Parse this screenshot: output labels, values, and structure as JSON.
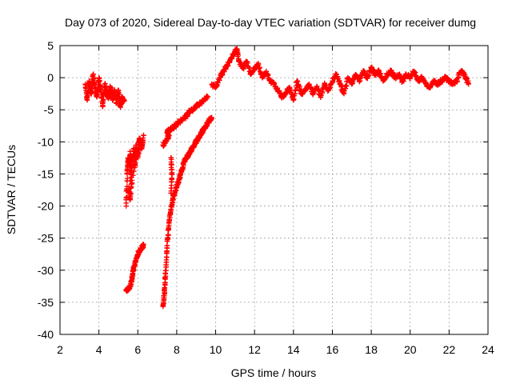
{
  "chart_data": {
    "type": "scatter",
    "title": "Day 073 of 2020, Sidereal Day-to-day VTEC variation (SDTVAR) for receiver dumg",
    "xlabel": "GPS time / hours",
    "ylabel": "SDTVAR / TECUs",
    "xlim": [
      2,
      24
    ],
    "ylim": [
      -40,
      5
    ],
    "xticks": [
      2,
      4,
      6,
      8,
      10,
      12,
      14,
      16,
      18,
      20,
      22,
      24
    ],
    "yticks": [
      5,
      0,
      -5,
      -10,
      -15,
      -20,
      -25,
      -30,
      -35,
      -40
    ],
    "grid": true,
    "marker": "+",
    "color": "#ff0000",
    "series": [
      {
        "name": "SDTVAR",
        "segments": [
          [
            [
              3.3,
              -1.0
            ],
            [
              3.4,
              -3.5
            ],
            [
              3.5,
              -0.5
            ],
            [
              3.6,
              -2.5
            ],
            [
              3.7,
              0.5
            ],
            [
              3.8,
              -1.5
            ],
            [
              3.9,
              -3.0
            ],
            [
              4.0,
              0.0
            ],
            [
              4.1,
              -2.0
            ],
            [
              4.2,
              -4.5
            ],
            [
              4.3,
              -1.0
            ],
            [
              4.4,
              -2.5
            ],
            [
              4.5,
              -3.0
            ],
            [
              4.6,
              -1.5
            ],
            [
              4.7,
              -3.5
            ],
            [
              4.8,
              -2.0
            ],
            [
              4.9,
              -4.0
            ],
            [
              5.0,
              -2.0
            ],
            [
              5.1,
              -4.5
            ],
            [
              5.2,
              -3.0
            ],
            [
              5.3,
              -3.5
            ]
          ],
          [
            [
              5.4,
              -20.0
            ],
            [
              5.45,
              -15.0
            ],
            [
              5.5,
              -12.5
            ],
            [
              5.55,
              -13.5
            ],
            [
              5.6,
              -11.5
            ],
            [
              5.65,
              -15.5
            ],
            [
              5.7,
              -13.0
            ],
            [
              5.8,
              -11.0
            ],
            [
              5.85,
              -14.0
            ],
            [
              5.9,
              -10.5
            ],
            [
              6.0,
              -12.5
            ],
            [
              6.05,
              -10.0
            ],
            [
              6.1,
              -9.5
            ],
            [
              6.2,
              -11.0
            ],
            [
              6.3,
              -9.0
            ],
            [
              5.55,
              -17.0
            ],
            [
              5.6,
              -19.0
            ],
            [
              5.7,
              -16.0
            ]
          ],
          [
            [
              5.4,
              -33.0
            ],
            [
              5.5,
              -33.0
            ],
            [
              5.6,
              -32.5
            ],
            [
              5.7,
              -31.5
            ],
            [
              5.75,
              -30.5
            ],
            [
              5.8,
              -29.5
            ],
            [
              5.9,
              -28.5
            ],
            [
              6.0,
              -27.5
            ],
            [
              6.1,
              -27.0
            ],
            [
              6.2,
              -26.5
            ],
            [
              6.3,
              -26.0
            ]
          ],
          [
            [
              7.3,
              -10.5
            ],
            [
              7.4,
              -10.0
            ],
            [
              7.5,
              -9.5
            ],
            [
              7.6,
              -9.0
            ],
            [
              7.5,
              -8.5
            ],
            [
              7.7,
              -8.0
            ],
            [
              7.9,
              -7.5
            ],
            [
              8.1,
              -7.0
            ],
            [
              8.3,
              -6.5
            ],
            [
              8.5,
              -6.0
            ],
            [
              8.6,
              -5.5
            ],
            [
              8.8,
              -5.0
            ],
            [
              9.0,
              -4.5
            ],
            [
              9.2,
              -4.0
            ],
            [
              9.4,
              -3.5
            ],
            [
              9.6,
              -3.0
            ]
          ],
          [
            [
              7.7,
              -12.5
            ],
            [
              7.75,
              -15.0
            ],
            [
              7.7,
              -18.0
            ]
          ],
          [
            [
              7.3,
              -35.5
            ],
            [
              7.35,
              -34.0
            ],
            [
              7.4,
              -32.0
            ],
            [
              7.45,
              -29.5
            ],
            [
              7.5,
              -27.0
            ],
            [
              7.55,
              -24.5
            ],
            [
              7.6,
              -22.5
            ],
            [
              7.7,
              -20.5
            ],
            [
              7.8,
              -19.0
            ],
            [
              7.9,
              -18.0
            ],
            [
              8.0,
              -17.0
            ],
            [
              8.1,
              -16.0
            ],
            [
              8.2,
              -15.0
            ],
            [
              8.3,
              -14.0
            ],
            [
              8.4,
              -13.0
            ],
            [
              8.5,
              -12.5
            ],
            [
              8.6,
              -12.0
            ],
            [
              8.7,
              -11.5
            ],
            [
              8.8,
              -11.0
            ],
            [
              8.9,
              -10.5
            ],
            [
              9.0,
              -10.0
            ],
            [
              9.1,
              -9.5
            ],
            [
              9.2,
              -9.0
            ],
            [
              9.3,
              -8.5
            ],
            [
              9.4,
              -8.0
            ],
            [
              9.5,
              -7.5
            ],
            [
              9.6,
              -7.0
            ],
            [
              9.7,
              -6.5
            ],
            [
              9.8,
              -6.2
            ]
          ],
          [
            [
              9.8,
              -1.0
            ],
            [
              10.0,
              -1.5
            ],
            [
              10.2,
              0.0
            ],
            [
              10.4,
              1.0
            ],
            [
              10.6,
              2.0
            ],
            [
              10.8,
              3.0
            ],
            [
              11.0,
              4.0
            ],
            [
              11.1,
              4.5
            ],
            [
              11.2,
              2.5
            ],
            [
              11.4,
              1.5
            ],
            [
              11.6,
              2.5
            ],
            [
              11.8,
              0.5
            ],
            [
              12.0,
              1.5
            ],
            [
              12.2,
              2.0
            ],
            [
              12.4,
              0.0
            ],
            [
              12.6,
              1.0
            ],
            [
              12.8,
              -0.5
            ],
            [
              13.0,
              -1.0
            ],
            [
              13.2,
              -2.0
            ],
            [
              13.4,
              -3.0
            ],
            [
              13.6,
              -2.5
            ],
            [
              13.8,
              -1.5
            ],
            [
              14.0,
              -3.5
            ],
            [
              14.2,
              -0.5
            ],
            [
              14.4,
              -2.5
            ],
            [
              14.6,
              -2.0
            ],
            [
              14.8,
              -1.0
            ],
            [
              15.0,
              -2.5
            ],
            [
              15.2,
              -1.5
            ],
            [
              15.4,
              -3.0
            ],
            [
              15.6,
              -1.0
            ],
            [
              15.8,
              -2.0
            ],
            [
              16.0,
              -0.5
            ],
            [
              16.2,
              0.5
            ],
            [
              16.4,
              -1.0
            ],
            [
              16.6,
              -2.5
            ],
            [
              16.8,
              0.0
            ],
            [
              17.0,
              -1.0
            ],
            [
              17.2,
              0.5
            ],
            [
              17.4,
              -0.5
            ],
            [
              17.6,
              1.0
            ],
            [
              17.8,
              0.0
            ],
            [
              18.0,
              1.5
            ],
            [
              18.2,
              0.5
            ],
            [
              18.4,
              1.0
            ],
            [
              18.6,
              -0.5
            ],
            [
              18.8,
              0.5
            ],
            [
              19.0,
              1.0
            ],
            [
              19.2,
              0.0
            ],
            [
              19.4,
              0.5
            ],
            [
              19.6,
              -0.5
            ],
            [
              19.8,
              0.5
            ],
            [
              20.0,
              0.0
            ],
            [
              20.2,
              1.0
            ],
            [
              20.4,
              -0.5
            ],
            [
              20.6,
              0.0
            ],
            [
              20.8,
              -1.0
            ],
            [
              21.0,
              -1.5
            ],
            [
              21.2,
              -0.5
            ],
            [
              21.4,
              -1.0
            ],
            [
              21.6,
              -0.5
            ],
            [
              21.8,
              0.0
            ],
            [
              22.0,
              -0.5
            ],
            [
              22.2,
              -1.0
            ],
            [
              22.4,
              -0.5
            ],
            [
              22.6,
              1.0
            ],
            [
              22.8,
              0.5
            ],
            [
              23.0,
              -1.0
            ]
          ]
        ]
      }
    ]
  }
}
